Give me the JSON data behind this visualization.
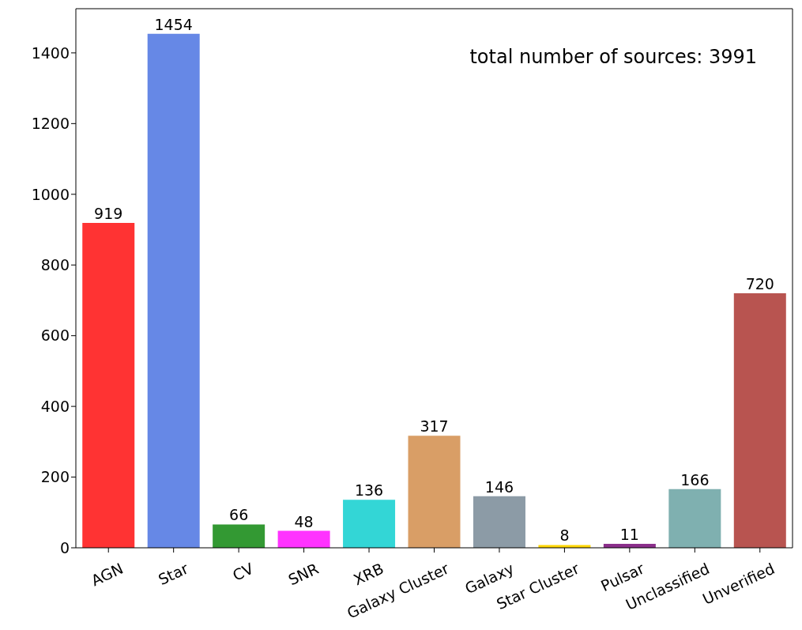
{
  "chart_data": {
    "type": "bar",
    "categories": [
      "AGN",
      "Star",
      "CV",
      "SNR",
      "XRB",
      "Galaxy Cluster",
      "Galaxy",
      "Star Cluster",
      "Pulsar",
      "Unclassified",
      "Unverified"
    ],
    "values": [
      919,
      1454,
      66,
      48,
      136,
      317,
      146,
      8,
      11,
      166,
      720
    ],
    "colors": [
      "#ff3333",
      "#6688e6",
      "#339933",
      "#ff33ff",
      "#33d6d6",
      "#d99e66",
      "#8c9ba6",
      "#ffd700",
      "#8b2f8b",
      "#7fb0b0",
      "#b85450"
    ],
    "ylim": [
      0,
      1525
    ],
    "yticks": [
      0,
      200,
      400,
      600,
      800,
      1000,
      1200,
      1400
    ],
    "data_labels": true,
    "annotations": [
      "total number of sources: 3991"
    ]
  }
}
